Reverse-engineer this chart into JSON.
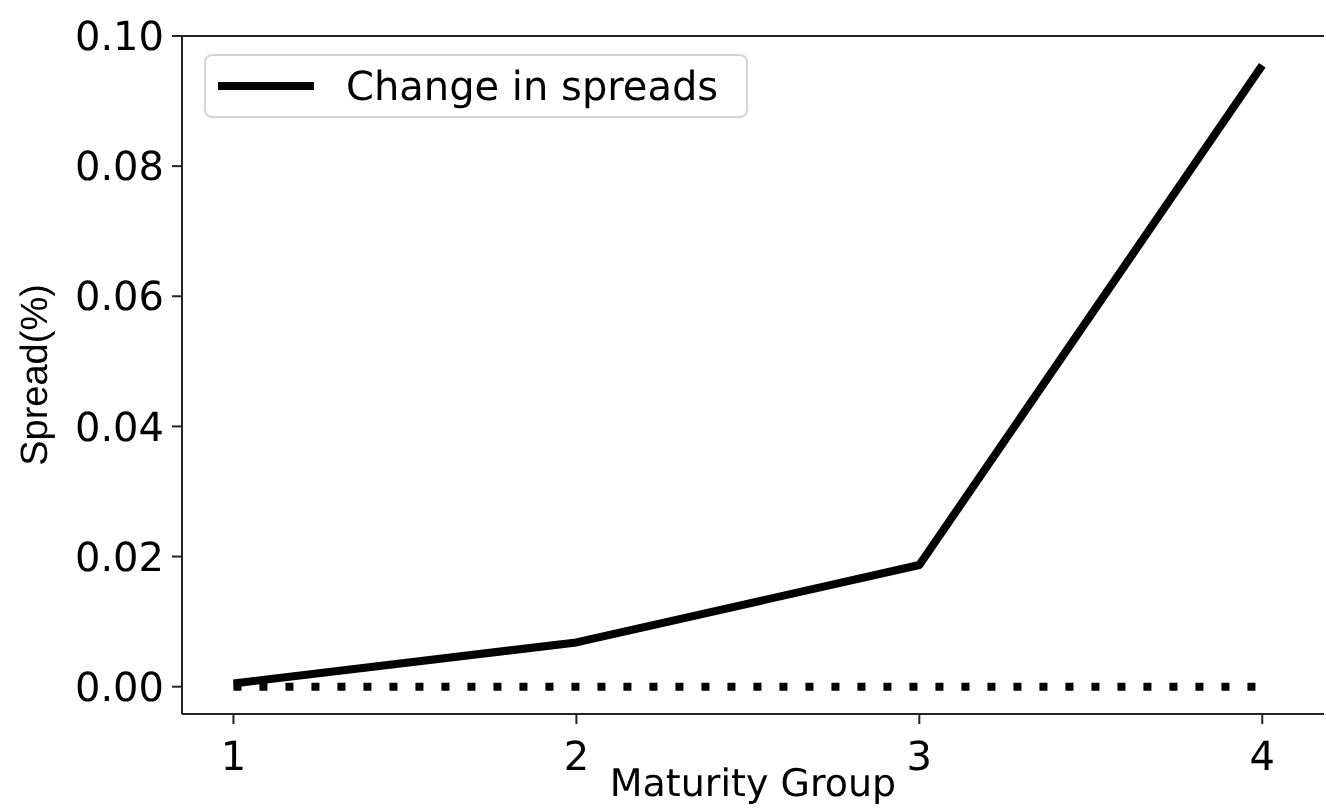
{
  "chart_data": {
    "type": "line",
    "xlabel": "Maturity Group",
    "ylabel": "Spread(%)",
    "x": [
      1,
      2,
      3,
      4
    ],
    "series": [
      {
        "name": "Change in spreads",
        "color": "#000000",
        "values": [
          0.0005,
          0.0068,
          0.0187,
          0.0955
        ],
        "line_style": "solid"
      },
      {
        "color": "#000000",
        "values": [
          0,
          0,
          0,
          0
        ],
        "line_style": "dotted"
      }
    ],
    "xlim": [
      0.85,
      4.18
    ],
    "xticks": [
      1,
      2,
      3,
      4
    ],
    "ylim": [
      -0.0042,
      0.1
    ],
    "yticks": [
      {
        "value": 0,
        "label": "0.00"
      },
      0.02,
      0.04,
      0.06,
      0.08,
      {
        "value": 0.1,
        "label": "0.10"
      }
    ],
    "legend": "top left",
    "grid": false
  }
}
